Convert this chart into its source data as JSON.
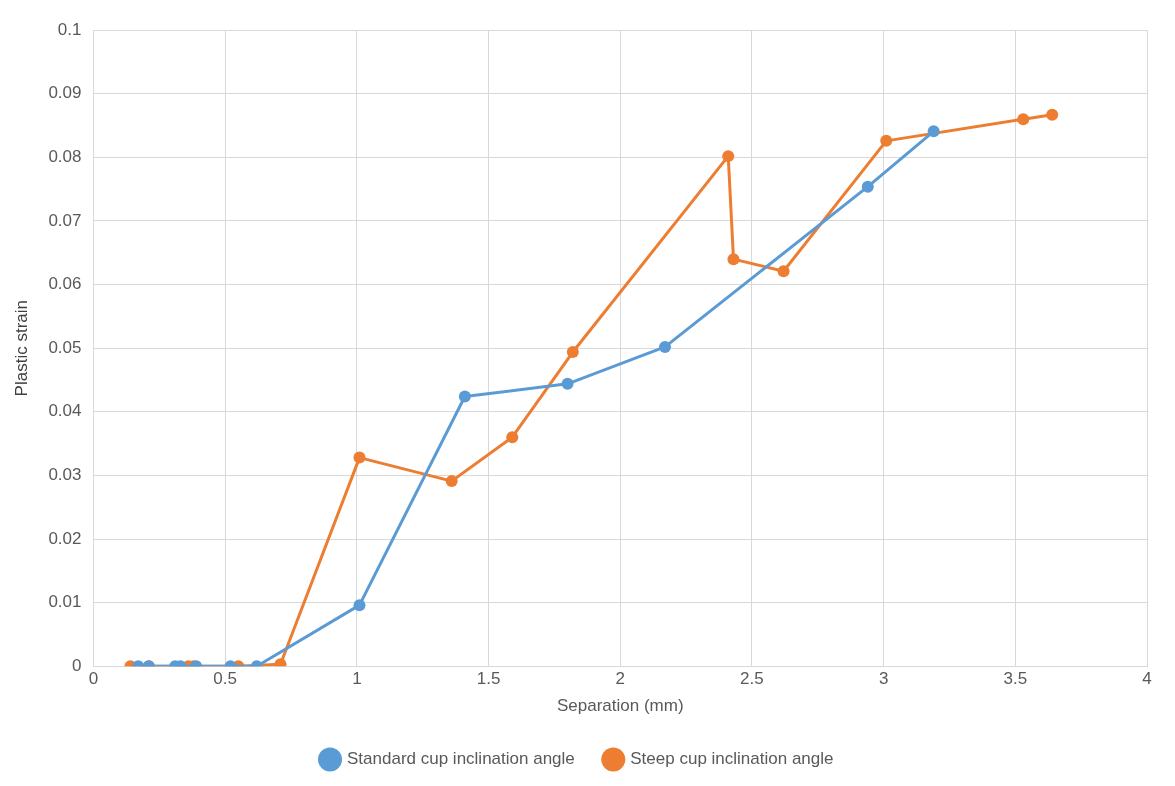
{
  "chart_data": {
    "type": "line",
    "xlabel": "Separation (mm)",
    "ylabel": "Plastic strain",
    "xlim": [
      0,
      4
    ],
    "xticks": [
      0,
      0.5,
      1,
      1.5,
      2,
      2.5,
      3,
      3.5,
      4
    ],
    "ylim": [
      0,
      0.1
    ],
    "yticks": [
      0,
      0.01,
      0.02,
      0.03,
      0.04,
      0.05,
      0.06,
      0.07,
      0.08,
      0.09,
      0.1
    ],
    "grid": true,
    "legend": "bottom",
    "marker": "circle",
    "line_style": "solid",
    "series": [
      {
        "name": "Standard cup inclination angle",
        "color": "#5b9bd5",
        "x": [
          0.17,
          0.21,
          0.31,
          0.33,
          0.39,
          0.52,
          0.62,
          1.01,
          1.41,
          1.8,
          2.17,
          2.94,
          3.19
        ],
        "values": [
          0,
          0,
          0,
          0,
          0,
          0,
          0,
          0.0096,
          0.0424,
          0.0444,
          0.0502,
          0.0754,
          0.0841
        ]
      },
      {
        "name": "Steep cup inclination angle",
        "color": "#ed7d31",
        "x": [
          0.14,
          0.21,
          0.36,
          0.38,
          0.55,
          0.71,
          1.01,
          1.36,
          1.59,
          1.82,
          2.41,
          2.43,
          2.62,
          3.01,
          3.53,
          3.64
        ],
        "values": [
          0,
          0,
          0,
          0,
          0,
          0.0003,
          0.0328,
          0.0291,
          0.036,
          0.0494,
          0.0802,
          0.064,
          0.0621,
          0.0826,
          0.086,
          0.0867
        ]
      }
    ]
  }
}
